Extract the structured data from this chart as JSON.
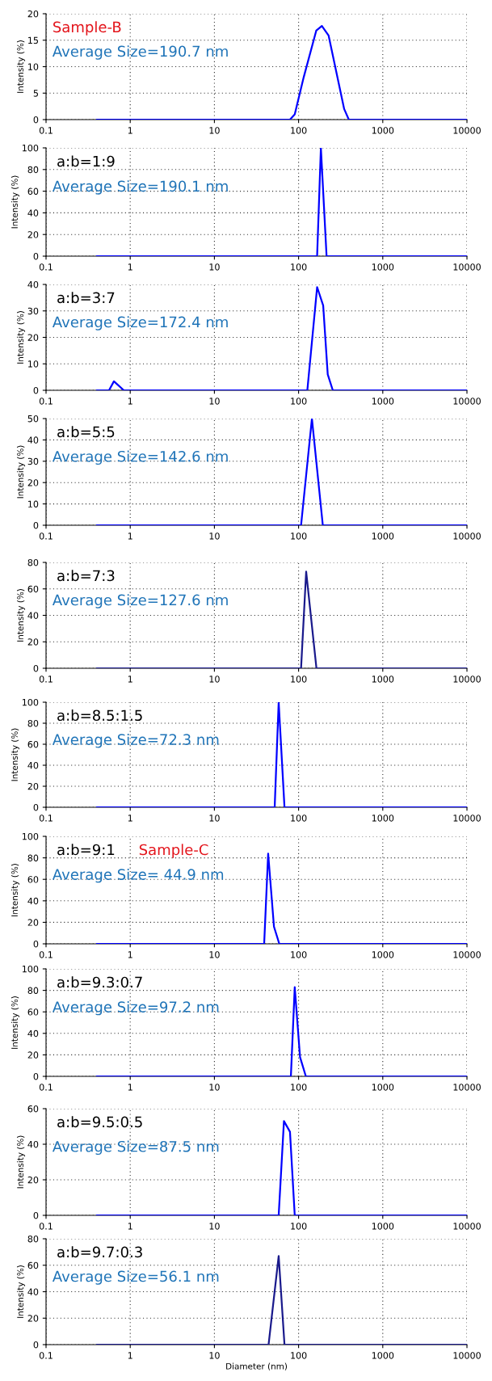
{
  "chart_data": [
    {
      "type": "line",
      "subtitle": "Sample-B",
      "annotations": [
        "Average Size=190.7 nm"
      ],
      "ylabel": "Intensity (%)",
      "log": "x",
      "grid": true,
      "xlim": [
        0.1,
        10000
      ],
      "xticks": [
        0.1,
        1,
        10,
        100,
        1000,
        10000
      ],
      "ylim": [
        0,
        20
      ],
      "yticks": [
        0,
        5,
        10,
        15,
        20
      ],
      "series": [
        {
          "color": "#0000ff",
          "x": [
            0.4,
            79,
            90,
            115,
            162,
            189,
            227,
            348,
            395,
            10000
          ],
          "values": [
            0,
            0,
            1,
            8,
            16.8,
            17.7,
            15.9,
            2,
            0,
            0
          ]
        }
      ]
    },
    {
      "type": "line",
      "title": "a:b=1:9",
      "annotations": [
        "Average Size=190.1 nm"
      ],
      "ylabel": "Intensity (%)",
      "log": "x",
      "grid": true,
      "xlim": [
        0.1,
        10000
      ],
      "xticks": [
        0.1,
        1,
        10,
        100,
        1000,
        10000
      ],
      "ylim": [
        0,
        100
      ],
      "yticks": [
        0,
        20,
        40,
        60,
        80,
        100
      ],
      "series": [
        {
          "color": "#0000ff",
          "x": [
            0.4,
            166,
            184,
            215,
            10000
          ],
          "values": [
            0,
            0,
            100,
            0,
            0
          ]
        }
      ]
    },
    {
      "type": "line",
      "title": "a:b=3:7",
      "annotations": [
        "Average Size=172.4 nm"
      ],
      "ylabel": "Intensity (%)",
      "log": "x",
      "grid": true,
      "xlim": [
        0.1,
        10000
      ],
      "xticks": [
        0.1,
        1,
        10,
        100,
        1000,
        10000
      ],
      "ylim": [
        0,
        40
      ],
      "yticks": [
        0,
        10,
        20,
        30,
        40
      ],
      "series": [
        {
          "color": "#0000ff",
          "x": [
            0.4,
            0.56,
            0.64,
            0.84,
            127,
            166,
            196,
            222,
            255,
            10000
          ],
          "values": [
            0,
            0,
            3.4,
            0,
            0,
            39,
            32,
            6,
            0,
            0
          ]
        }
      ]
    },
    {
      "type": "line",
      "title": "a:b=5:5",
      "annotations": [
        "Average Size=142.6 nm"
      ],
      "ylabel": "Intensity (%)",
      "log": "x",
      "grid": true,
      "xlim": [
        0.1,
        10000
      ],
      "xticks": [
        0.1,
        1,
        10,
        100,
        1000,
        10000
      ],
      "ylim": [
        0,
        50
      ],
      "yticks": [
        0,
        10,
        20,
        30,
        40,
        50
      ],
      "series": [
        {
          "color": "#0000ff",
          "x": [
            0.4,
            107,
            144,
            194,
            10000
          ],
          "values": [
            0,
            0,
            50,
            0,
            0
          ]
        }
      ]
    },
    {
      "type": "line",
      "title": "a:b=7:3",
      "annotations": [
        "Average Size=127.6 nm"
      ],
      "ylabel": "Intensity (%)",
      "log": "x",
      "grid": true,
      "xlim": [
        0.1,
        10000
      ],
      "xticks": [
        0.1,
        1,
        10,
        100,
        1000,
        10000
      ],
      "ylim": [
        0,
        80
      ],
      "yticks": [
        0,
        20,
        40,
        60,
        80
      ],
      "series": [
        {
          "color": "#1a1a8c",
          "x": [
            0.4,
            107,
            123,
            163,
            10000
          ],
          "values": [
            0,
            0,
            73,
            0,
            0
          ]
        }
      ]
    },
    {
      "type": "line",
      "title": "a:b=8.5:1.5",
      "annotations": [
        "Average Size=72.3 nm"
      ],
      "ylabel": "Intensity (%)",
      "log": "x",
      "grid": true,
      "xlim": [
        0.1,
        10000
      ],
      "xticks": [
        0.1,
        1,
        10,
        100,
        1000,
        10000
      ],
      "ylim": [
        0,
        100
      ],
      "yticks": [
        0,
        20,
        40,
        60,
        80,
        100
      ],
      "series": [
        {
          "color": "#0000ff",
          "x": [
            0.4,
            52,
            58,
            68,
            10000
          ],
          "values": [
            0,
            0,
            100,
            0,
            0
          ]
        }
      ]
    },
    {
      "type": "line",
      "title": "a:b=9:1",
      "subtitle": "Sample-C",
      "annotations": [
        "Average Size= 44.9 nm"
      ],
      "ylabel": "Intensity (%)",
      "log": "x",
      "grid": true,
      "xlim": [
        0.1,
        10000
      ],
      "xticks": [
        0.1,
        1,
        10,
        100,
        1000,
        10000
      ],
      "ylim": [
        0,
        100
      ],
      "yticks": [
        0,
        20,
        40,
        60,
        80,
        100
      ],
      "series": [
        {
          "color": "#0000ff",
          "x": [
            0.4,
            39,
            43.5,
            51,
            59,
            10000
          ],
          "values": [
            0,
            0,
            84,
            16,
            0,
            0
          ]
        }
      ]
    },
    {
      "type": "line",
      "title": "a:b=9.3:0.7",
      "annotations": [
        "Average Size=97.2 nm"
      ],
      "ylabel": "Intensity (%)",
      "log": "x",
      "grid": true,
      "xlim": [
        0.1,
        10000
      ],
      "xticks": [
        0.1,
        1,
        10,
        100,
        1000,
        10000
      ],
      "ylim": [
        0,
        100
      ],
      "yticks": [
        0,
        20,
        40,
        60,
        80,
        100
      ],
      "series": [
        {
          "color": "#0000ff",
          "x": [
            0.4,
            81,
            90,
            104,
            122,
            10000
          ],
          "values": [
            0,
            0,
            83,
            18,
            0,
            0
          ]
        }
      ]
    },
    {
      "type": "line",
      "title": "a:b=9.5:0.5",
      "annotations": [
        "Average Size=87.5 nm"
      ],
      "ylabel": "Intensity (%)",
      "log": "x",
      "grid": true,
      "xlim": [
        0.1,
        10000
      ],
      "xticks": [
        0.1,
        1,
        10,
        100,
        1000,
        10000
      ],
      "ylim": [
        0,
        60
      ],
      "yticks": [
        0,
        20,
        40,
        60
      ],
      "series": [
        {
          "color": "#0000ff",
          "x": [
            0.4,
            58,
            67,
            79,
            90,
            10000
          ],
          "values": [
            0,
            0,
            53,
            47,
            0,
            0
          ]
        }
      ]
    },
    {
      "type": "line",
      "title": "a:b=9.7:0.3",
      "annotations": [
        "Average Size=56.1 nm"
      ],
      "xlabel": "Diameter (nm)",
      "ylabel": "Intensity (%)",
      "log": "x",
      "grid": true,
      "xlim": [
        0.1,
        10000
      ],
      "xticks": [
        0.1,
        1,
        10,
        100,
        1000,
        10000
      ],
      "ylim": [
        0,
        80
      ],
      "yticks": [
        0,
        20,
        40,
        60,
        80
      ],
      "series": [
        {
          "color": "#1a1a8c",
          "x": [
            0.4,
            44,
            58,
            68,
            10000
          ],
          "values": [
            0,
            0,
            67,
            0,
            0
          ]
        }
      ]
    }
  ]
}
